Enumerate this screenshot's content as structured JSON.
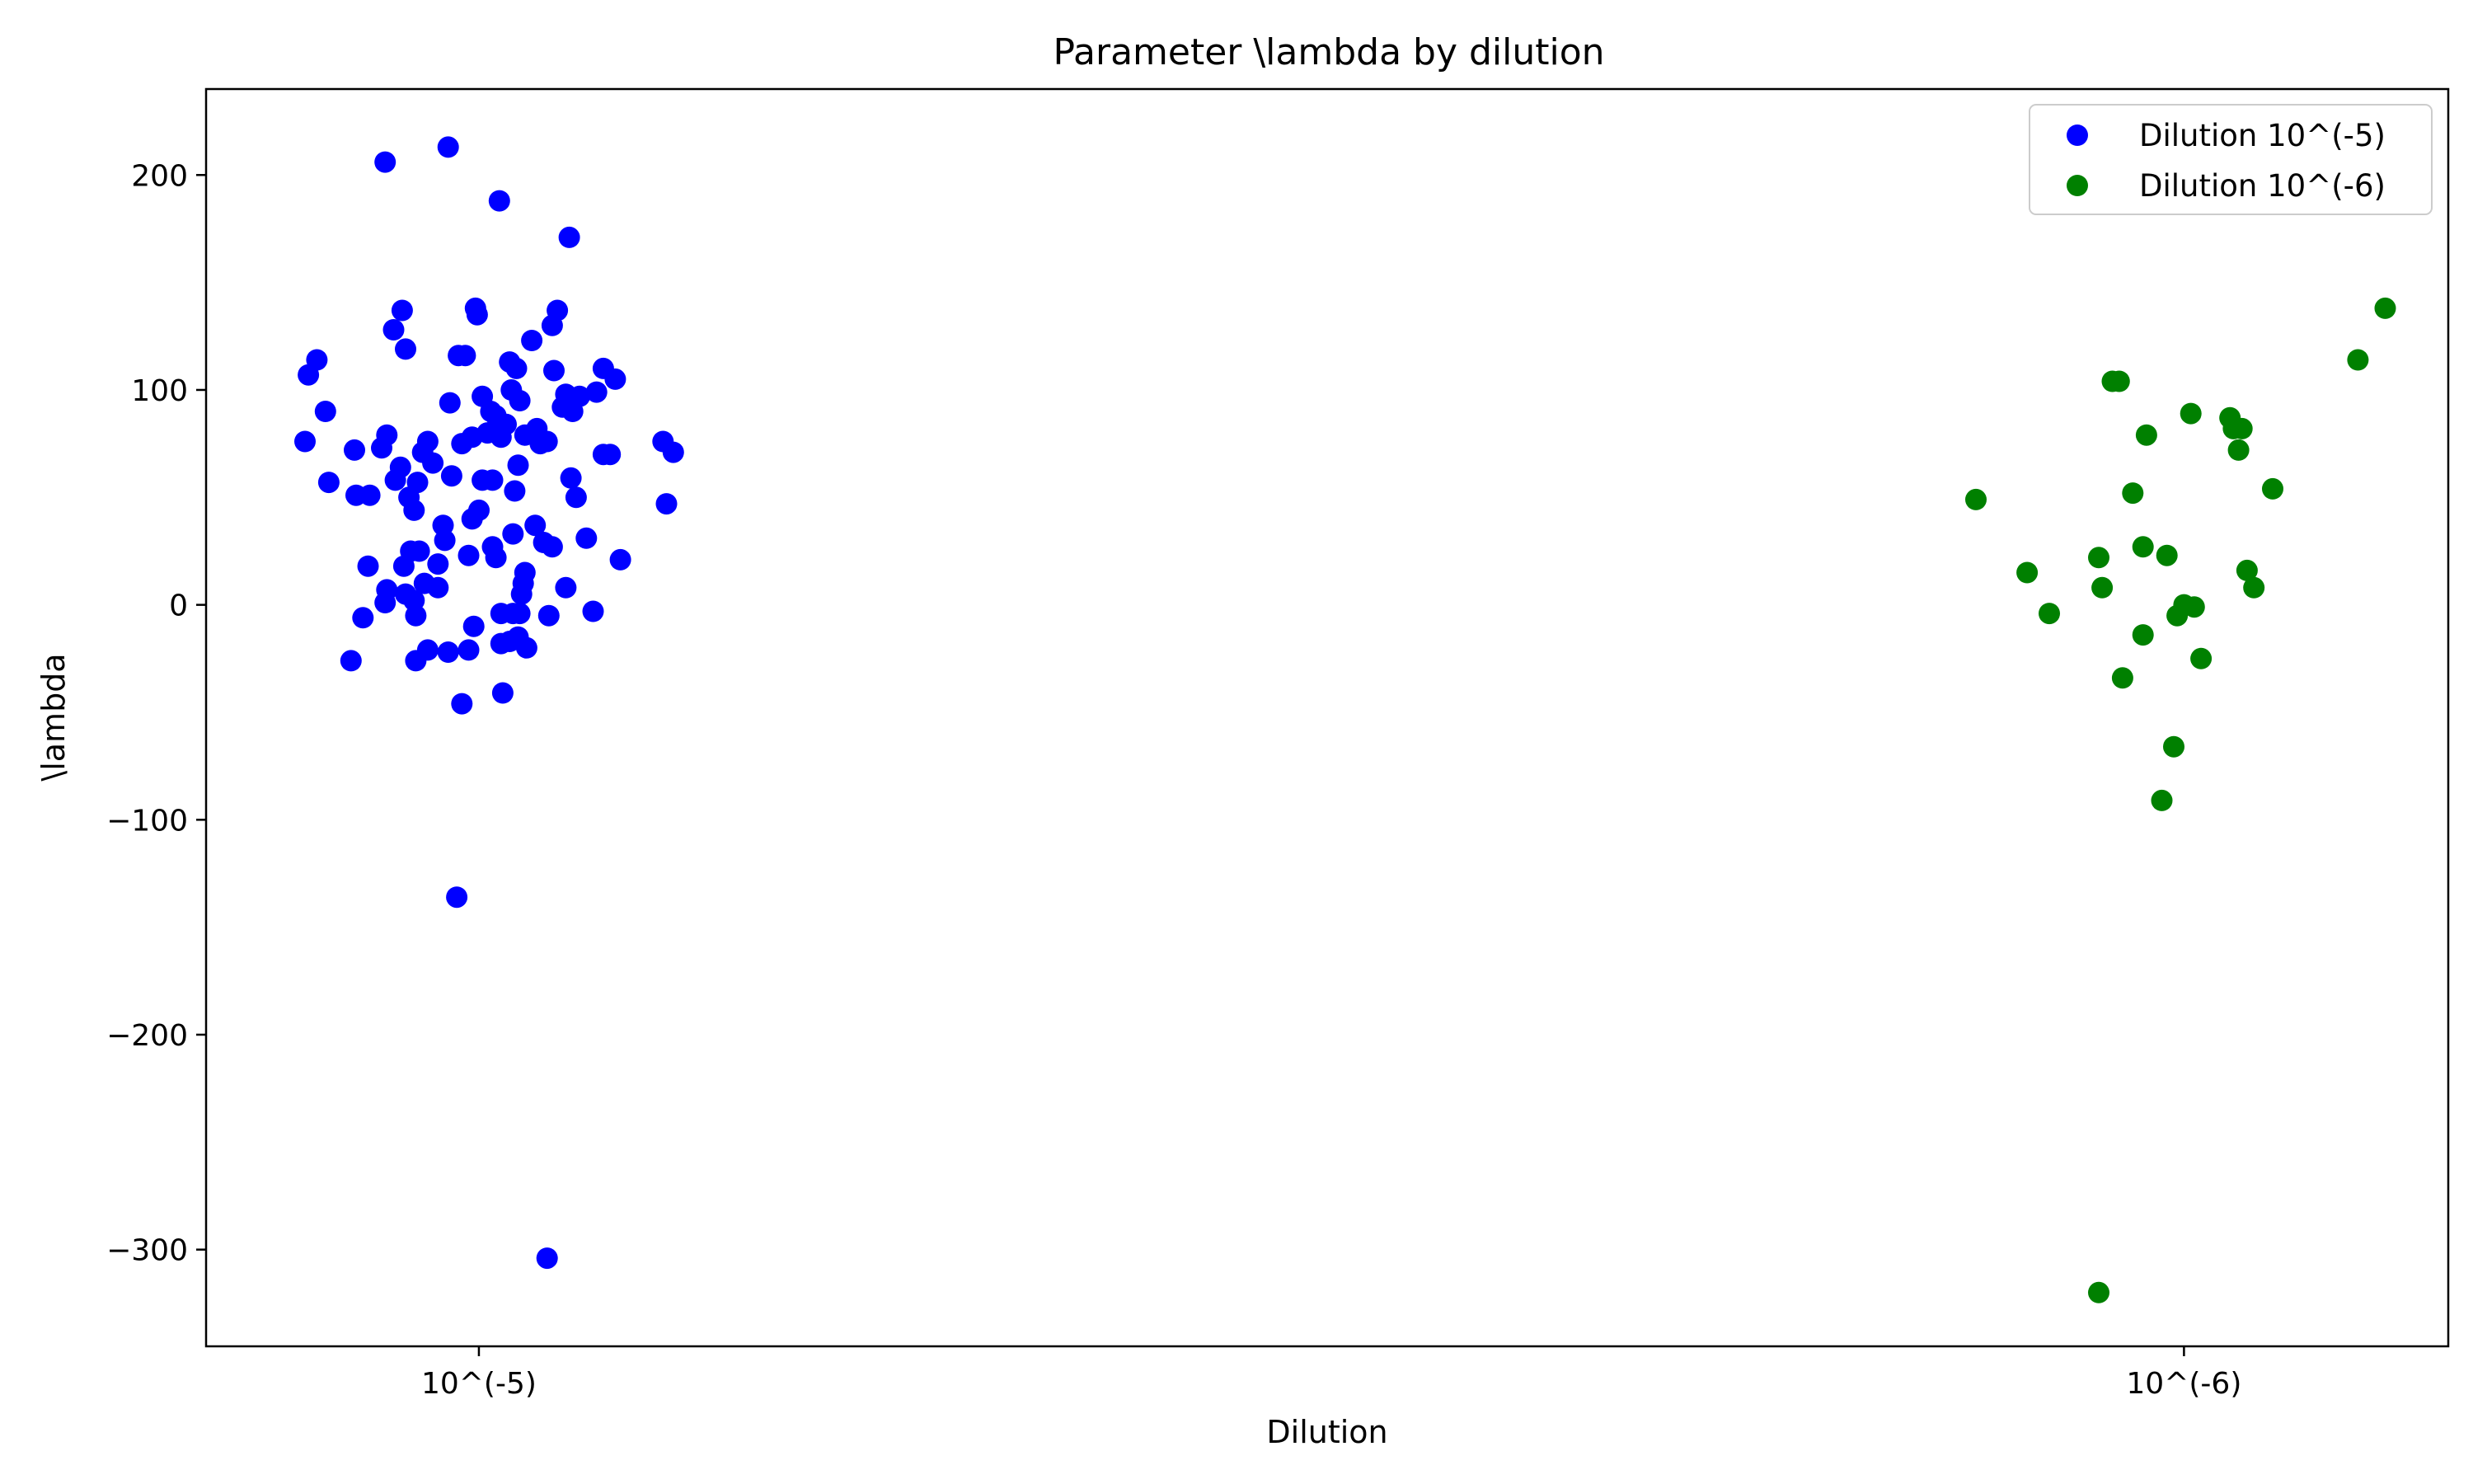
{
  "chart_data": {
    "type": "scatter",
    "title": "Parameter \\lambda by dilution",
    "xlabel": "Dilution",
    "ylabel": "\\lambda",
    "categories": [
      "10^(-5)",
      "10^(-6)"
    ],
    "xlim": [
      -0.16,
      1.155
    ],
    "ylim": [
      -345,
      240
    ],
    "yticks": [
      200,
      100,
      0,
      -100,
      -200,
      -300
    ],
    "ytick_labels": [
      "200",
      "100",
      "0",
      "−100",
      "−200",
      "−300"
    ],
    "grid": false,
    "legend_position": "top-right",
    "series": [
      {
        "name": "Dilution 10^(-5)",
        "color": "#0000ff",
        "points": [
          [
            -0.055,
            206
          ],
          [
            -0.018,
            213
          ],
          [
            0.012,
            188
          ],
          [
            0.053,
            171
          ],
          [
            -0.1,
            107
          ],
          [
            -0.095,
            114
          ],
          [
            -0.09,
            90
          ],
          [
            -0.102,
            76
          ],
          [
            -0.088,
            57
          ],
          [
            -0.073,
            72
          ],
          [
            -0.072,
            51
          ],
          [
            -0.064,
            51
          ],
          [
            -0.05,
            128
          ],
          [
            -0.045,
            137
          ],
          [
            -0.043,
            119
          ],
          [
            -0.054,
            79
          ],
          [
            -0.057,
            73
          ],
          [
            -0.049,
            58
          ],
          [
            -0.046,
            64
          ],
          [
            -0.041,
            50
          ],
          [
            -0.038,
            44
          ],
          [
            -0.036,
            57
          ],
          [
            -0.033,
            71
          ],
          [
            -0.03,
            76
          ],
          [
            -0.027,
            66
          ],
          [
            -0.021,
            37
          ],
          [
            -0.017,
            94
          ],
          [
            -0.012,
            116
          ],
          [
            -0.008,
            116
          ],
          [
            -0.016,
            60
          ],
          [
            -0.01,
            75
          ],
          [
            -0.002,
            138
          ],
          [
            -0.001,
            135
          ],
          [
            -0.004,
            78
          ],
          [
            0.002,
            97
          ],
          [
            0.005,
            80
          ],
          [
            0.007,
            90
          ],
          [
            0.01,
            88
          ],
          [
            0.013,
            78
          ],
          [
            0.016,
            84
          ],
          [
            0.019,
            100
          ],
          [
            0.018,
            113
          ],
          [
            0.022,
            110
          ],
          [
            0.024,
            95
          ],
          [
            0.027,
            79
          ],
          [
            0.031,
            123
          ],
          [
            0.034,
            82
          ],
          [
            0.036,
            75
          ],
          [
            0.04,
            76
          ],
          [
            0.043,
            130
          ],
          [
            0.044,
            109
          ],
          [
            0.046,
            137
          ],
          [
            0.049,
            92
          ],
          [
            0.051,
            98
          ],
          [
            0.055,
            90
          ],
          [
            0.059,
            97
          ],
          [
            0.069,
            99
          ],
          [
            0.073,
            110
          ],
          [
            0.08,
            105
          ],
          [
            0.073,
            70
          ],
          [
            0.077,
            70
          ],
          [
            0.054,
            59
          ],
          [
            0.057,
            50
          ],
          [
            0.008,
            58
          ],
          [
            0.002,
            58
          ],
          [
            -0.004,
            40
          ],
          [
            0.0,
            44
          ],
          [
            -0.02,
            30
          ],
          [
            -0.024,
            19
          ],
          [
            -0.035,
            25
          ],
          [
            -0.04,
            25
          ],
          [
            -0.044,
            18
          ],
          [
            -0.065,
            18
          ],
          [
            -0.054,
            7
          ],
          [
            -0.055,
            1
          ],
          [
            -0.043,
            5
          ],
          [
            -0.038,
            2
          ],
          [
            -0.037,
            -5
          ],
          [
            -0.024,
            8
          ],
          [
            -0.032,
            10
          ],
          [
            -0.068,
            -6
          ],
          [
            -0.075,
            -26
          ],
          [
            -0.037,
            -26
          ],
          [
            -0.03,
            -21
          ],
          [
            -0.018,
            -22
          ],
          [
            -0.006,
            -21
          ],
          [
            -0.003,
            -10
          ],
          [
            -0.006,
            23
          ],
          [
            0.008,
            27
          ],
          [
            0.01,
            22
          ],
          [
            0.02,
            33
          ],
          [
            0.021,
            53
          ],
          [
            0.023,
            65
          ],
          [
            0.033,
            37
          ],
          [
            0.038,
            29
          ],
          [
            0.043,
            27
          ],
          [
            0.02,
            -4
          ],
          [
            0.013,
            -4
          ],
          [
            0.024,
            -4
          ],
          [
            0.025,
            5
          ],
          [
            0.026,
            10
          ],
          [
            0.027,
            15
          ],
          [
            0.013,
            -18
          ],
          [
            0.018,
            -17
          ],
          [
            0.023,
            -15
          ],
          [
            0.028,
            -20
          ],
          [
            0.041,
            -5
          ],
          [
            0.051,
            8
          ],
          [
            0.063,
            31
          ],
          [
            0.067,
            -3
          ],
          [
            0.083,
            21
          ],
          [
            0.108,
            76
          ],
          [
            0.11,
            47
          ],
          [
            0.114,
            71
          ],
          [
            0.014,
            -41
          ],
          [
            -0.01,
            -46
          ],
          [
            -0.013,
            -136
          ],
          [
            0.04,
            -304
          ]
        ]
      },
      {
        "name": "Dilution 10^(-6)",
        "color": "#008000",
        "points": [
          [
            0.878,
            49
          ],
          [
            0.908,
            15
          ],
          [
            0.921,
            -4
          ],
          [
            0.95,
            22
          ],
          [
            0.952,
            8
          ],
          [
            0.95,
            -320
          ],
          [
            0.958,
            104
          ],
          [
            0.962,
            104
          ],
          [
            0.964,
            -34
          ],
          [
            0.97,
            52
          ],
          [
            0.976,
            27
          ],
          [
            0.976,
            -14
          ],
          [
            0.978,
            79
          ],
          [
            0.99,
            23
          ],
          [
            0.994,
            -66
          ],
          [
            0.987,
            -91
          ],
          [
            0.996,
            -5
          ],
          [
            1.006,
            -1
          ],
          [
            1.004,
            89
          ],
          [
            1.0,
            0
          ],
          [
            1.01,
            -25
          ],
          [
            1.027,
            87
          ],
          [
            1.029,
            82
          ],
          [
            1.032,
            72
          ],
          [
            1.034,
            82
          ],
          [
            1.037,
            16
          ],
          [
            1.041,
            8
          ],
          [
            1.052,
            54
          ],
          [
            1.102,
            114
          ],
          [
            1.118,
            138
          ]
        ]
      }
    ]
  }
}
